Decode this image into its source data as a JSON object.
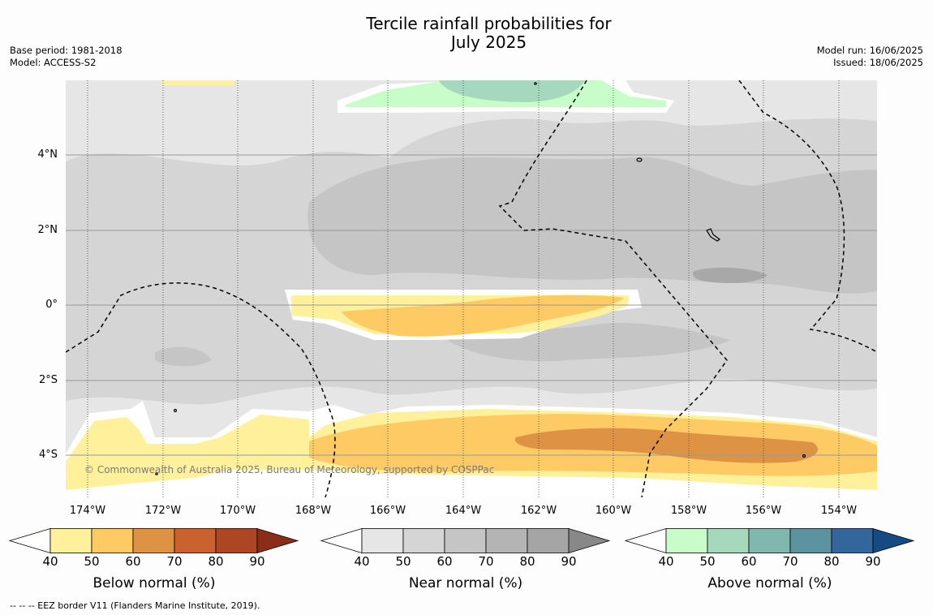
{
  "title_line1": "Tercile rainfall probabilities for",
  "title_line2": "July 2025",
  "base_period": "Base period: 1981-2018",
  "model": "Model: ACCESS-S2",
  "model_run": "Model run: 16/06/2025",
  "issued": "Issued: 18/06/2025",
  "copyright": "© Commonwealth of Australia 2025, Bureau of Meteorology, supported by COSPPac",
  "footnote": "--  --  -- EEZ border V11 (Flanders Marine Institute, 2019).",
  "lat_labels": [
    "4°N",
    "2°N",
    "0°",
    "2°S",
    "4°S"
  ],
  "lon_labels": [
    "174°W",
    "172°W",
    "170°W",
    "168°W",
    "166°W",
    "164°W",
    "162°W",
    "160°W",
    "158°W",
    "156°W",
    "154°W"
  ],
  "colorbars": [
    {
      "label": "Below normal (%)",
      "ticks": [
        "40",
        "50",
        "60",
        "70",
        "80",
        "90"
      ],
      "colors": [
        "#fff09c",
        "#fdca63",
        "#de9243",
        "#c9622f",
        "#ad4623",
        "#8c2e17"
      ]
    },
    {
      "label": "Near normal (%)",
      "ticks": [
        "40",
        "50",
        "60",
        "70",
        "80",
        "90"
      ],
      "colors": [
        "#e6e6e6",
        "#d5d5d5",
        "#c5c5c5",
        "#b4b4b4",
        "#a5a5a5",
        "#888888"
      ]
    },
    {
      "label": "Above normal (%)",
      "ticks": [
        "40",
        "50",
        "60",
        "70",
        "80",
        "90"
      ],
      "colors": [
        "#c8fcc8",
        "#a5d8bc",
        "#80b8b0",
        "#5b94a0",
        "#33679c",
        "#154b82"
      ]
    }
  ]
}
